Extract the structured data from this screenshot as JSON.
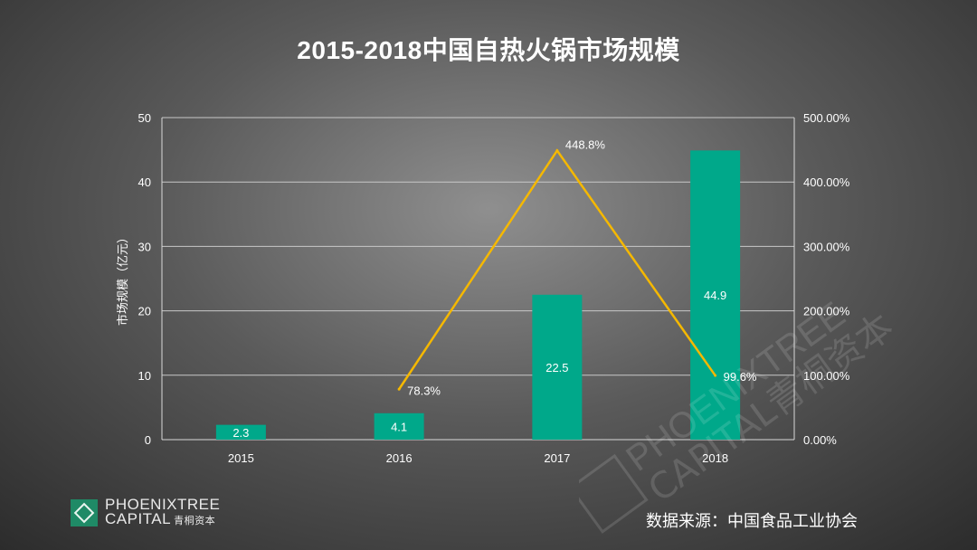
{
  "title": "2015-2018中国自热火锅市场规模",
  "source": "数据来源：中国食品工业协会",
  "logo": {
    "line1": "PHOENIXTREE",
    "line2": "CAPITAL",
    "line2_cn": "青桐资本"
  },
  "watermark": {
    "line1": "PHOENIXTREE",
    "line2": "CAPITAL青桐资本"
  },
  "colors": {
    "bar": "#00a88a",
    "line": "#f5b800",
    "grid": "#c8c8c8",
    "axis": "#d9d9d9"
  },
  "chart_data": {
    "type": "bar",
    "categories": [
      "2015",
      "2016",
      "2017",
      "2018"
    ],
    "ylabel": "市场规模（亿元）",
    "ylim": [
      0,
      50
    ],
    "yticks": [
      "0",
      "10",
      "20",
      "30",
      "40",
      "50"
    ],
    "y2lim": [
      0,
      500
    ],
    "y2ticks": [
      "0.00%",
      "100.00%",
      "200.00%",
      "300.00%",
      "400.00%",
      "500.00%"
    ],
    "grid": true,
    "series": [
      {
        "type": "bar",
        "values": [
          2.3,
          4.1,
          22.5,
          44.9
        ],
        "labels": [
          "2.3",
          "4.1",
          "22.5",
          "44.9"
        ],
        "axis": "left"
      },
      {
        "type": "line",
        "x": [
          "2016",
          "2017",
          "2018"
        ],
        "values": [
          78.3,
          448.8,
          99.6
        ],
        "labels": [
          "78.3%",
          "448.8%",
          "99.6%"
        ],
        "axis": "right"
      }
    ]
  }
}
